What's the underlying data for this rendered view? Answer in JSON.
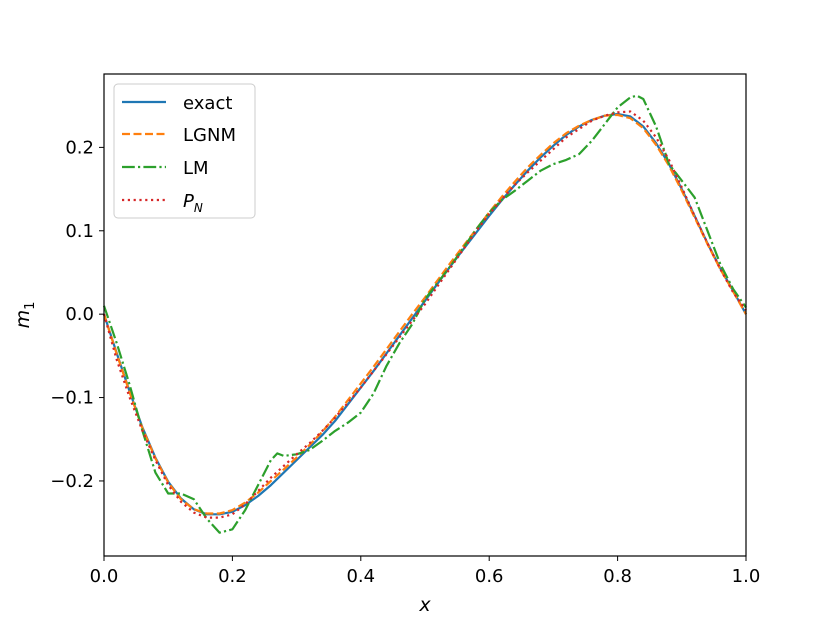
{
  "chart_data": {
    "type": "line",
    "xlabel": "x",
    "ylabel": "m",
    "ylabel_sub": "1",
    "xlim": [
      0.0,
      1.0
    ],
    "ylim": [
      -0.29,
      0.288
    ],
    "xticks": [
      0.0,
      0.2,
      0.4,
      0.6,
      0.8,
      1.0
    ],
    "xtick_labels": [
      "0.0",
      "0.2",
      "0.4",
      "0.6",
      "0.8",
      "1.0"
    ],
    "yticks": [
      -0.2,
      -0.1,
      0.0,
      0.1,
      0.2
    ],
    "ytick_labels": [
      "−0.2",
      "−0.1",
      "0.0",
      "0.1",
      "0.2"
    ],
    "grid": false,
    "legend_position": "top-left",
    "series": [
      {
        "name": "exact",
        "legend_label": "exact",
        "color": "#1f77b4",
        "style": "solid",
        "x": [
          0.0,
          0.02,
          0.04,
          0.06,
          0.08,
          0.1,
          0.12,
          0.14,
          0.16,
          0.18,
          0.2,
          0.22,
          0.24,
          0.26,
          0.28,
          0.3,
          0.32,
          0.34,
          0.36,
          0.38,
          0.4,
          0.42,
          0.44,
          0.46,
          0.48,
          0.5,
          0.52,
          0.54,
          0.56,
          0.58,
          0.6,
          0.62,
          0.64,
          0.66,
          0.68,
          0.7,
          0.72,
          0.74,
          0.76,
          0.78,
          0.8,
          0.82,
          0.84,
          0.86,
          0.88,
          0.9,
          0.92,
          0.94,
          0.96,
          0.98,
          1.0
        ],
        "y": [
          0.0,
          -0.047,
          -0.093,
          -0.136,
          -0.172,
          -0.201,
          -0.221,
          -0.234,
          -0.24,
          -0.24,
          -0.237,
          -0.229,
          -0.218,
          -0.205,
          -0.19,
          -0.175,
          -0.16,
          -0.145,
          -0.128,
          -0.108,
          -0.088,
          -0.068,
          -0.047,
          -0.026,
          -0.005,
          0.016,
          0.037,
          0.058,
          0.078,
          0.098,
          0.118,
          0.137,
          0.155,
          0.172,
          0.188,
          0.202,
          0.215,
          0.225,
          0.233,
          0.238,
          0.24,
          0.237,
          0.225,
          0.205,
          0.18,
          0.15,
          0.118,
          0.085,
          0.055,
          0.028,
          0.0
        ]
      },
      {
        "name": "LGNM",
        "legend_label": "LGNM",
        "color": "#ff7f0e",
        "style": "dashed",
        "x": [
          0.0,
          0.02,
          0.04,
          0.06,
          0.08,
          0.1,
          0.12,
          0.14,
          0.16,
          0.18,
          0.2,
          0.22,
          0.24,
          0.26,
          0.28,
          0.3,
          0.32,
          0.34,
          0.36,
          0.38,
          0.4,
          0.42,
          0.44,
          0.46,
          0.48,
          0.5,
          0.52,
          0.54,
          0.56,
          0.58,
          0.6,
          0.62,
          0.64,
          0.66,
          0.68,
          0.7,
          0.72,
          0.74,
          0.76,
          0.78,
          0.8,
          0.82,
          0.84,
          0.86,
          0.88,
          0.9,
          0.92,
          0.94,
          0.96,
          0.98,
          1.0
        ],
        "y": [
          0.0,
          -0.048,
          -0.094,
          -0.137,
          -0.173,
          -0.202,
          -0.222,
          -0.234,
          -0.239,
          -0.239,
          -0.235,
          -0.226,
          -0.214,
          -0.2,
          -0.186,
          -0.172,
          -0.157,
          -0.141,
          -0.123,
          -0.103,
          -0.083,
          -0.063,
          -0.042,
          -0.021,
          0.0,
          0.02,
          0.041,
          0.062,
          0.082,
          0.102,
          0.122,
          0.141,
          0.159,
          0.176,
          0.191,
          0.205,
          0.217,
          0.226,
          0.233,
          0.238,
          0.239,
          0.235,
          0.223,
          0.203,
          0.178,
          0.148,
          0.116,
          0.084,
          0.054,
          0.027,
          0.0
        ]
      },
      {
        "name": "LM",
        "legend_label": "LM",
        "color": "#2ca02c",
        "style": "dashdot",
        "x": [
          0.0,
          0.02,
          0.04,
          0.06,
          0.08,
          0.1,
          0.12,
          0.14,
          0.16,
          0.18,
          0.2,
          0.22,
          0.24,
          0.26,
          0.27,
          0.28,
          0.3,
          0.32,
          0.34,
          0.36,
          0.38,
          0.4,
          0.42,
          0.44,
          0.46,
          0.48,
          0.5,
          0.52,
          0.54,
          0.56,
          0.58,
          0.6,
          0.62,
          0.64,
          0.66,
          0.68,
          0.7,
          0.72,
          0.74,
          0.76,
          0.78,
          0.8,
          0.82,
          0.83,
          0.84,
          0.86,
          0.88,
          0.9,
          0.92,
          0.94,
          0.96,
          0.98,
          1.0
        ],
        "y": [
          0.01,
          -0.035,
          -0.085,
          -0.14,
          -0.19,
          -0.215,
          -0.215,
          -0.222,
          -0.245,
          -0.262,
          -0.258,
          -0.235,
          -0.205,
          -0.175,
          -0.167,
          -0.17,
          -0.168,
          -0.163,
          -0.152,
          -0.14,
          -0.13,
          -0.118,
          -0.095,
          -0.062,
          -0.035,
          -0.012,
          0.018,
          0.038,
          0.058,
          0.08,
          0.102,
          0.122,
          0.137,
          0.148,
          0.16,
          0.172,
          0.18,
          0.185,
          0.192,
          0.208,
          0.228,
          0.248,
          0.26,
          0.262,
          0.258,
          0.225,
          0.18,
          0.16,
          0.14,
          0.1,
          0.06,
          0.03,
          0.008
        ]
      },
      {
        "name": "P_N",
        "legend_label": "P",
        "legend_sub": "N",
        "color": "#d62728",
        "style": "dotted",
        "x": [
          0.0,
          0.02,
          0.04,
          0.06,
          0.08,
          0.1,
          0.12,
          0.14,
          0.16,
          0.18,
          0.2,
          0.22,
          0.24,
          0.26,
          0.28,
          0.3,
          0.32,
          0.34,
          0.36,
          0.38,
          0.4,
          0.42,
          0.44,
          0.46,
          0.48,
          0.5,
          0.52,
          0.54,
          0.56,
          0.58,
          0.6,
          0.62,
          0.64,
          0.66,
          0.68,
          0.7,
          0.72,
          0.74,
          0.76,
          0.78,
          0.8,
          0.82,
          0.84,
          0.86,
          0.88,
          0.9,
          0.92,
          0.94,
          0.96,
          0.98,
          1.0
        ],
        "y": [
          0.0,
          -0.055,
          -0.1,
          -0.14,
          -0.175,
          -0.205,
          -0.225,
          -0.238,
          -0.244,
          -0.244,
          -0.24,
          -0.228,
          -0.212,
          -0.196,
          -0.182,
          -0.168,
          -0.155,
          -0.14,
          -0.124,
          -0.106,
          -0.088,
          -0.068,
          -0.048,
          -0.028,
          -0.008,
          0.012,
          0.034,
          0.056,
          0.078,
          0.1,
          0.12,
          0.138,
          0.155,
          0.17,
          0.184,
          0.198,
          0.212,
          0.222,
          0.232,
          0.238,
          0.242,
          0.243,
          0.232,
          0.212,
          0.185,
          0.152,
          0.118,
          0.085,
          0.054,
          0.026,
          0.005
        ]
      }
    ]
  }
}
